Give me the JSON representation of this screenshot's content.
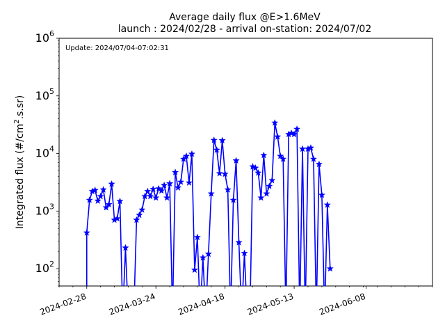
{
  "chart_data": {
    "type": "line",
    "title": "Average daily flux @E>1.6MeV",
    "subtitle": "launch : 2024/02/28 - arrival on-station: 2024/07/02",
    "annotation": "Update: 2024/07/04-07:02:31",
    "ylabel_prefix": "Integrated flux (#/cm",
    "ylabel_sup": "2",
    "ylabel_suffix": ".s.sr)",
    "xlabel": "",
    "x_ticks": [
      "2024-02-28",
      "2024-03-24",
      "2024-04-18",
      "2024-05-13",
      "2024-06-08"
    ],
    "y_ticks": [
      {
        "base": "10",
        "exp": "2",
        "value": 100
      },
      {
        "base": "10",
        "exp": "3",
        "value": 1000
      },
      {
        "base": "10",
        "exp": "4",
        "value": 10000
      },
      {
        "base": "10",
        "exp": "5",
        "value": 100000
      },
      {
        "base": "10",
        "exp": "6",
        "value": 1000000
      }
    ],
    "xlim": [
      "2024-02-18",
      "2024-07-02"
    ],
    "ylim": [
      50,
      1000000
    ],
    "yscale": "log",
    "grid": false,
    "series": [
      {
        "color": "#0000ff",
        "marker": "star",
        "points": [
          [
            "2024-02-28",
            0
          ],
          [
            "2024-02-28",
            420
          ],
          [
            "2024-02-29",
            1550
          ],
          [
            "2024-03-01",
            2200
          ],
          [
            "2024-03-02",
            2300
          ],
          [
            "2024-03-03",
            1500
          ],
          [
            "2024-03-04",
            1800
          ],
          [
            "2024-03-05",
            2350
          ],
          [
            "2024-03-06",
            1150
          ],
          [
            "2024-03-07",
            1300
          ],
          [
            "2024-03-08",
            2950
          ],
          [
            "2024-03-09",
            700
          ],
          [
            "2024-03-10",
            740
          ],
          [
            "2024-03-11",
            1480
          ],
          [
            "2024-03-12",
            0
          ],
          [
            "2024-03-13",
            230
          ],
          [
            "2024-03-14",
            0
          ],
          [
            "2024-03-15",
            0
          ],
          [
            "2024-03-16",
            0
          ],
          [
            "2024-03-17",
            700
          ],
          [
            "2024-03-18",
            850
          ],
          [
            "2024-03-19",
            1050
          ],
          [
            "2024-03-20",
            1800
          ],
          [
            "2024-03-21",
            2200
          ],
          [
            "2024-03-22",
            1800
          ],
          [
            "2024-03-23",
            2400
          ],
          [
            "2024-03-24",
            1700
          ],
          [
            "2024-03-25",
            2450
          ],
          [
            "2024-03-26",
            2250
          ],
          [
            "2024-03-27",
            2800
          ],
          [
            "2024-03-28",
            1700
          ],
          [
            "2024-03-29",
            3000
          ],
          [
            "2024-03-30",
            0
          ],
          [
            "2024-03-31",
            4700
          ],
          [
            "2024-04-01",
            2550
          ],
          [
            "2024-04-02",
            3200
          ],
          [
            "2024-04-03",
            8000
          ],
          [
            "2024-04-04",
            9000
          ],
          [
            "2024-04-05",
            3100
          ],
          [
            "2024-04-06",
            9800
          ],
          [
            "2024-04-07",
            95
          ],
          [
            "2024-04-08",
            350
          ],
          [
            "2024-04-09",
            0
          ],
          [
            "2024-04-10",
            155
          ],
          [
            "2024-04-11",
            0
          ],
          [
            "2024-04-12",
            180
          ],
          [
            "2024-04-13",
            2000
          ],
          [
            "2024-04-14",
            17000
          ],
          [
            "2024-04-15",
            11500
          ],
          [
            "2024-04-16",
            4500
          ],
          [
            "2024-04-17",
            16800
          ],
          [
            "2024-04-18",
            4400
          ],
          [
            "2024-04-19",
            2350
          ],
          [
            "2024-04-20",
            0
          ],
          [
            "2024-04-21",
            1550
          ],
          [
            "2024-04-22",
            7500
          ],
          [
            "2024-04-23",
            285
          ],
          [
            "2024-04-24",
            0
          ],
          [
            "2024-04-25",
            185
          ],
          [
            "2024-04-26",
            0
          ],
          [
            "2024-04-27",
            0
          ],
          [
            "2024-04-28",
            5900
          ],
          [
            "2024-04-29",
            5600
          ],
          [
            "2024-04-30",
            4600
          ],
          [
            "2024-05-01",
            1700
          ],
          [
            "2024-05-02",
            9300
          ],
          [
            "2024-05-03",
            2000
          ],
          [
            "2024-05-04",
            2700
          ],
          [
            "2024-05-05",
            3400
          ],
          [
            "2024-05-06",
            34000
          ],
          [
            "2024-05-07",
            19500
          ],
          [
            "2024-05-08",
            9000
          ],
          [
            "2024-05-09",
            8000
          ],
          [
            "2024-05-10",
            0
          ],
          [
            "2024-05-11",
            21500
          ],
          [
            "2024-05-12",
            22500
          ],
          [
            "2024-05-13",
            21500
          ],
          [
            "2024-05-14",
            26500
          ],
          [
            "2024-05-15",
            0
          ],
          [
            "2024-05-16",
            12000
          ],
          [
            "2024-05-17",
            0
          ],
          [
            "2024-05-18",
            12000
          ],
          [
            "2024-05-19",
            12500
          ],
          [
            "2024-05-20",
            8000
          ],
          [
            "2024-05-21",
            0
          ],
          [
            "2024-05-22",
            6500
          ],
          [
            "2024-05-23",
            1900
          ],
          [
            "2024-05-24",
            0
          ],
          [
            "2024-05-25",
            1280
          ],
          [
            "2024-05-26",
            100
          ]
        ]
      }
    ]
  }
}
